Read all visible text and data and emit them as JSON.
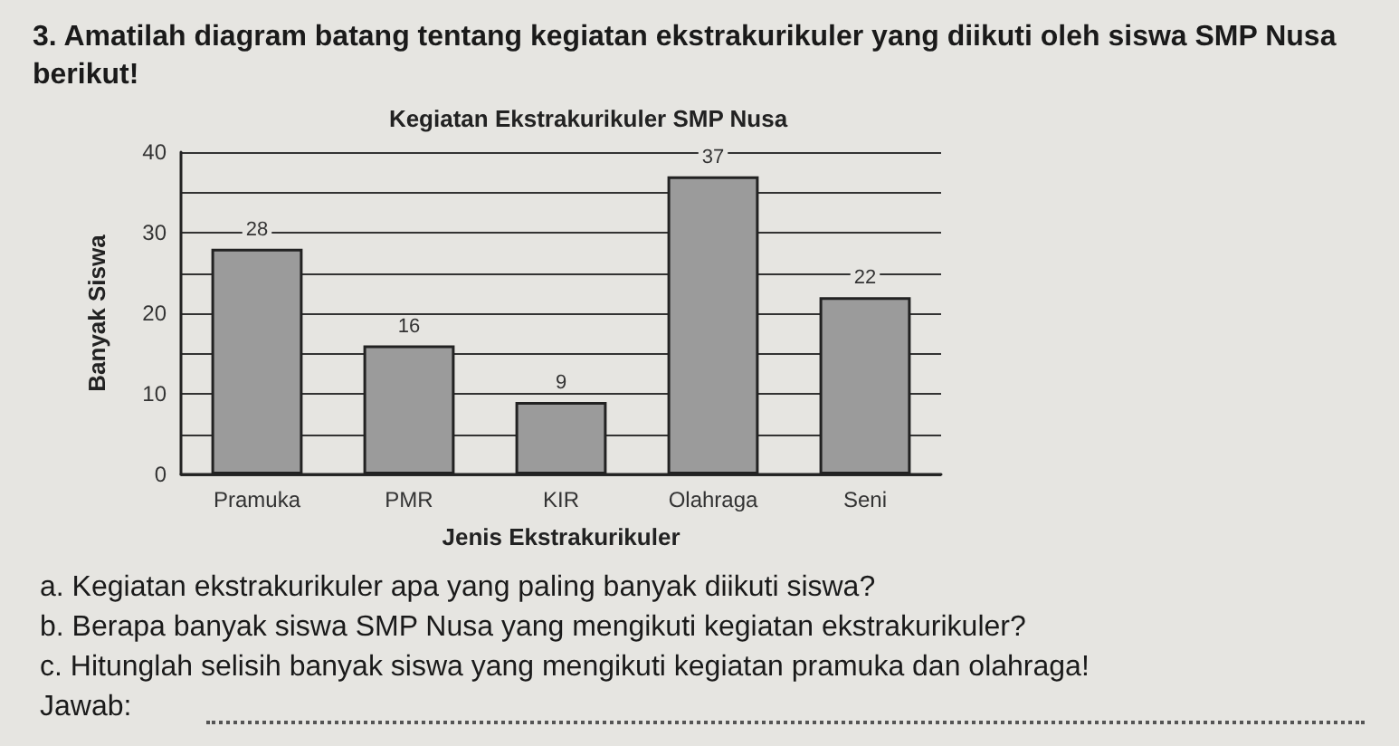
{
  "chart_data": {
    "type": "bar",
    "title": "Kegiatan Ekstrakurikuler SMP Nusa",
    "xlabel": "Jenis Ekstrakurikuler",
    "ylabel": "Banyak Siswa",
    "categories": [
      "Pramuka",
      "PMR",
      "KIR",
      "Olahraga",
      "Seni"
    ],
    "values": [
      28,
      16,
      9,
      37,
      22
    ],
    "color": "#9b9b9b",
    "data_labels": true,
    "ylim": [
      0,
      40
    ],
    "yticks": [
      0,
      {
        "value": 5,
        "label": null
      },
      10,
      {
        "value": 15,
        "label": null
      },
      20,
      {
        "value": 25,
        "label": null
      },
      30,
      {
        "value": 35,
        "label": null
      },
      40
    ],
    "grid": "y",
    "annotations": [
      "3. Amatilah diagram batang tentang kegiatan ekstrakurikuler yang diikuti oleh siswa SMP Nusa berikut!",
      "a. Kegiatan ekstrakurikuler apa yang paling banyak diikuti siswa?",
      "b. Berapa banyak siswa SMP Nusa yang mengikuti kegiatan ekstrakurikuler?",
      "c. Hitunglah selisih banyak siswa yang mengikuti kegiatan pramuka dan olahraga!",
      "Jawab:"
    ]
  }
}
